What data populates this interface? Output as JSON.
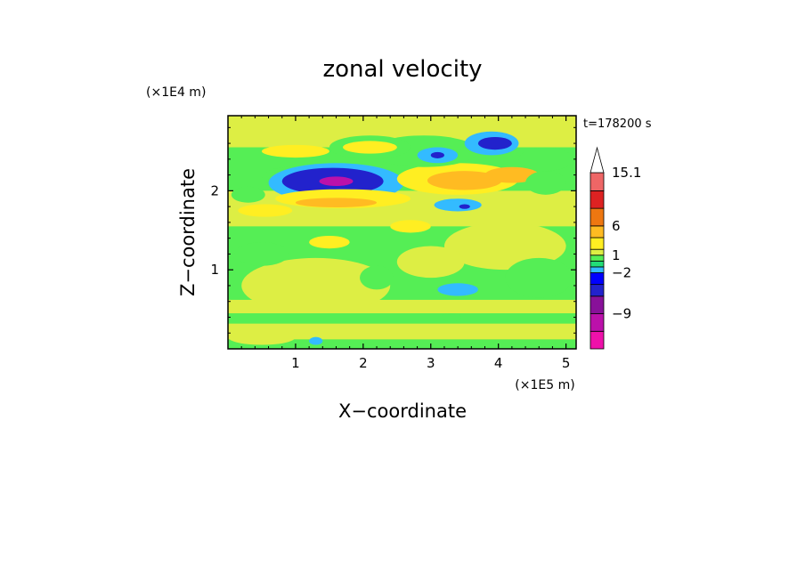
{
  "chart_data": {
    "type": "heatmap",
    "title": "zonal velocity",
    "xlabel": "X−coordinate",
    "ylabel": "Z−coordinate",
    "x_unit": "(×1E5 m)",
    "y_unit": "(×1E4 m)",
    "time_label": "t=178200 s",
    "xlim": [
      0,
      5.15
    ],
    "ylim": [
      0,
      2.95
    ],
    "x_ticks": [
      1,
      2,
      3,
      4,
      5
    ],
    "x_tick_labels": [
      "1",
      "2",
      "3",
      "4",
      "5"
    ],
    "y_ticks": [
      1,
      2
    ],
    "y_tick_labels": [
      "1",
      "2"
    ],
    "colorbar": {
      "levels": [
        -15,
        -12,
        -9,
        -6,
        -4,
        -2,
        -1,
        0,
        1,
        2,
        4,
        6,
        9,
        12,
        15.1,
        18
      ],
      "colors": [
        "#ee11aa",
        "#bb11aa",
        "#881199",
        "#2222cc",
        "#0000ff",
        "#33bbff",
        "#22dd77",
        "#55ee55",
        "#ddee44",
        "#ffee22",
        "#ffbb22",
        "#ee7711",
        "#dd2222",
        "#ee6666",
        "#f4aaaa",
        "#ffffff"
      ],
      "labels": [
        {
          "value": 15.1,
          "text": "15.1"
        },
        {
          "value": 6,
          "text": "6"
        },
        {
          "value": 1,
          "text": "1"
        },
        {
          "value": -2,
          "text": "−2"
        },
        {
          "value": -9,
          "text": "−9"
        }
      ]
    },
    "background_value": 0.3,
    "field_bands": [
      {
        "x": [
          0,
          5.15
        ],
        "z": [
          0,
          0.12
        ],
        "v": 0.5
      },
      {
        "x": [
          0,
          5.15
        ],
        "z": [
          0.12,
          0.32
        ],
        "v": 1.2
      },
      {
        "x": [
          0,
          5.15
        ],
        "z": [
          0.32,
          0.45
        ],
        "v": 0.5
      },
      {
        "x": [
          0,
          5.15
        ],
        "z": [
          0.45,
          0.62
        ],
        "v": 1.2
      },
      {
        "x": [
          0,
          5.15
        ],
        "z": [
          1.55,
          2.0
        ],
        "v": 1.2
      },
      {
        "x": [
          0,
          5.15
        ],
        "z": [
          2.55,
          2.95
        ],
        "v": 1.2
      }
    ],
    "field_blobs": [
      {
        "x": 1.3,
        "z": 0.8,
        "rx": 1.1,
        "rz": 0.35,
        "v": 1.2
      },
      {
        "x": 4.1,
        "z": 1.3,
        "rx": 0.9,
        "rz": 0.3,
        "v": 1.2
      },
      {
        "x": 3.0,
        "z": 1.1,
        "rx": 0.5,
        "rz": 0.2,
        "v": 1.2
      },
      {
        "x": 4.6,
        "z": 0.9,
        "rx": 0.5,
        "rz": 0.25,
        "v": 0.5
      },
      {
        "x": 0.5,
        "z": 1.2,
        "rx": 0.4,
        "rz": 0.15,
        "v": 0.5
      },
      {
        "x": 2.2,
        "z": 0.9,
        "rx": 0.25,
        "rz": 0.15,
        "v": 0.5
      },
      {
        "x": 3.4,
        "z": 0.75,
        "rx": 0.3,
        "rz": 0.08,
        "v": -1.5
      },
      {
        "x": 0.55,
        "z": 1.75,
        "rx": 0.4,
        "rz": 0.08,
        "v": 2.5
      },
      {
        "x": 1.5,
        "z": 1.35,
        "rx": 0.3,
        "rz": 0.08,
        "v": 2.5
      },
      {
        "x": 2.7,
        "z": 1.55,
        "rx": 0.3,
        "rz": 0.08,
        "v": 2.5
      },
      {
        "x": 0.9,
        "z": 2.15,
        "rx": 0.4,
        "rz": 0.15,
        "v": 0.5
      },
      {
        "x": 1.6,
        "z": 2.1,
        "rx": 1.0,
        "rz": 0.25,
        "v": -1.5
      },
      {
        "x": 1.55,
        "z": 2.12,
        "rx": 0.75,
        "rz": 0.17,
        "v": -5.0
      },
      {
        "x": 1.6,
        "z": 2.12,
        "rx": 0.25,
        "rz": 0.06,
        "v": -10.0
      },
      {
        "x": 1.7,
        "z": 1.9,
        "rx": 1.0,
        "rz": 0.12,
        "v": 2.5
      },
      {
        "x": 1.6,
        "z": 1.85,
        "rx": 0.6,
        "rz": 0.06,
        "v": 4.5
      },
      {
        "x": 3.4,
        "z": 2.15,
        "rx": 0.9,
        "rz": 0.2,
        "v": 2.5
      },
      {
        "x": 3.5,
        "z": 2.13,
        "rx": 0.55,
        "rz": 0.12,
        "v": 4.5
      },
      {
        "x": 4.2,
        "z": 2.2,
        "rx": 0.4,
        "rz": 0.1,
        "v": 4.5
      },
      {
        "x": 2.9,
        "z": 2.5,
        "rx": 0.8,
        "rz": 0.2,
        "v": 0.5
      },
      {
        "x": 3.4,
        "z": 1.82,
        "rx": 0.35,
        "rz": 0.08,
        "v": -1.5
      },
      {
        "x": 3.5,
        "z": 1.8,
        "rx": 0.08,
        "rz": 0.03,
        "v": -5.0
      },
      {
        "x": 2.1,
        "z": 2.55,
        "rx": 0.6,
        "rz": 0.15,
        "v": 0.5
      },
      {
        "x": 2.1,
        "z": 2.55,
        "rx": 0.4,
        "rz": 0.08,
        "v": 2.5
      },
      {
        "x": 3.1,
        "z": 2.45,
        "rx": 0.3,
        "rz": 0.1,
        "v": -1.5
      },
      {
        "x": 3.1,
        "z": 2.45,
        "rx": 0.1,
        "rz": 0.04,
        "v": -5.0
      },
      {
        "x": 3.9,
        "z": 2.6,
        "rx": 0.4,
        "rz": 0.15,
        "v": -1.5
      },
      {
        "x": 3.95,
        "z": 2.6,
        "rx": 0.25,
        "rz": 0.08,
        "v": -5.0
      },
      {
        "x": 4.7,
        "z": 2.4,
        "rx": 0.4,
        "rz": 0.15,
        "v": 0.5
      },
      {
        "x": 4.7,
        "z": 2.1,
        "rx": 0.3,
        "rz": 0.15,
        "v": 0.5
      },
      {
        "x": 1.0,
        "z": 2.5,
        "rx": 0.5,
        "rz": 0.08,
        "v": 2.5
      },
      {
        "x": 0.3,
        "z": 1.95,
        "rx": 0.25,
        "rz": 0.1,
        "v": 0.5
      },
      {
        "x": 0.5,
        "z": 0.15,
        "rx": 0.5,
        "rz": 0.1,
        "v": 1.2
      },
      {
        "x": 1.3,
        "z": 0.1,
        "rx": 0.1,
        "rz": 0.05,
        "v": -1.5
      },
      {
        "x": 3.3,
        "z": 0.4,
        "rx": 0.15,
        "rz": 0.05,
        "v": 0.5
      }
    ]
  }
}
